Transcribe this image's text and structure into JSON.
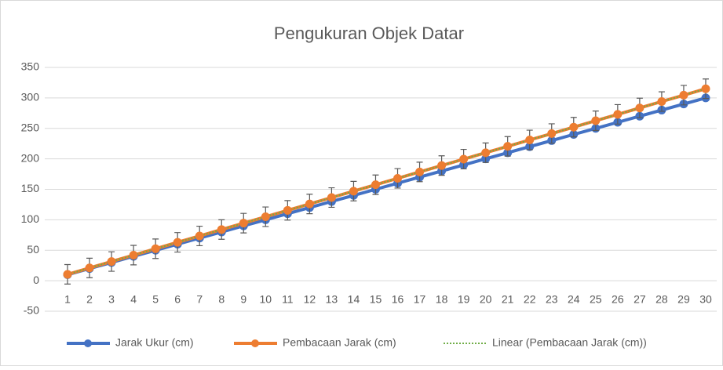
{
  "chart_data": {
    "type": "line",
    "title": "Pengukuran Objek Datar",
    "categories": [
      "1",
      "2",
      "3",
      "4",
      "5",
      "6",
      "7",
      "8",
      "9",
      "10",
      "11",
      "12",
      "13",
      "14",
      "15",
      "16",
      "17",
      "18",
      "19",
      "20",
      "21",
      "22",
      "23",
      "24",
      "25",
      "26",
      "27",
      "28",
      "29",
      "30"
    ],
    "series": [
      {
        "name": "Jarak Ukur (cm)",
        "color": "#4472c4",
        "style": "solid",
        "values": [
          10,
          20,
          30,
          40,
          50,
          60,
          70,
          80,
          90,
          100,
          110,
          120,
          130,
          140,
          150,
          160,
          170,
          180,
          190,
          200,
          210,
          220,
          230,
          240,
          250,
          260,
          270,
          280,
          290,
          300
        ]
      },
      {
        "name": "Pembacaan Jarak (cm)",
        "color": "#ed7d31",
        "style": "solid",
        "values": [
          10.5,
          21,
          31.5,
          42,
          52.5,
          63,
          73.5,
          84,
          94.5,
          105,
          115.5,
          126,
          136.5,
          147,
          157.5,
          168,
          178.5,
          189,
          199.5,
          210,
          220.5,
          231,
          241.5,
          252,
          262.5,
          273,
          283.5,
          294,
          304.5,
          315
        ],
        "errors": [
          16,
          16,
          16,
          16,
          16,
          16,
          16,
          16,
          16,
          16,
          16,
          16,
          16,
          16,
          16,
          16,
          16,
          16,
          16,
          16,
          16,
          16,
          16,
          16,
          16,
          16,
          16,
          16,
          16,
          16
        ]
      },
      {
        "name": "Linear (Pembacaan Jarak (cm))",
        "color": "#70ad47",
        "style": "dotted",
        "values": [
          10.5,
          21,
          31.5,
          42,
          52.5,
          63,
          73.5,
          84,
          94.5,
          105,
          115.5,
          126,
          136.5,
          147,
          157.5,
          168,
          178.5,
          189,
          199.5,
          210,
          220.5,
          231,
          241.5,
          252,
          262.5,
          273,
          283.5,
          294,
          304.5,
          315
        ]
      }
    ],
    "ylim": [
      -50,
      350
    ],
    "yticks": [
      -50,
      0,
      50,
      100,
      150,
      200,
      250,
      300,
      350
    ],
    "grid": true,
    "legend": "bottom"
  }
}
